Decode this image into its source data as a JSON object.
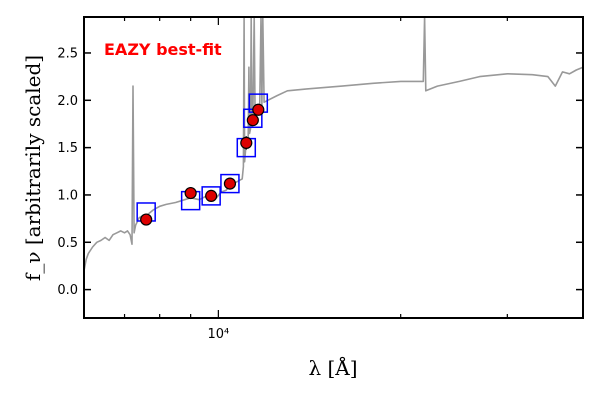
{
  "chart_data": {
    "type": "scatter",
    "annotation": "EAZY best-fit",
    "xlabel": "λ [Å]",
    "ylabel": "f_ν [arbitrarily scaled]",
    "xscale": "log",
    "xlim": [
      6000,
      40000
    ],
    "ylim": [
      -0.3,
      2.88
    ],
    "x_major_tick_labels": [
      {
        "value": 10000,
        "label": "10⁴"
      }
    ],
    "y_ticks": [
      0.0,
      0.5,
      1.0,
      1.5,
      2.0,
      2.5
    ],
    "y_tick_labels": [
      "0.0",
      "0.5",
      "1.0",
      "1.5",
      "2.0",
      "2.5"
    ],
    "grid": false,
    "colors": {
      "template": "#999999",
      "model_box": "#0000ff",
      "observed_fill": "#dd0000",
      "annotation": "#ff0000"
    },
    "series": [
      {
        "kind": "observed_photometry",
        "points": [
          {
            "x": 7600,
            "y": 0.74
          },
          {
            "x": 9000,
            "y": 1.02
          },
          {
            "x": 9730,
            "y": 0.99
          },
          {
            "x": 10450,
            "y": 1.12
          },
          {
            "x": 11120,
            "y": 1.55,
            "yerr": 0.07
          },
          {
            "x": 11400,
            "y": 1.79
          },
          {
            "x": 11640,
            "y": 1.9
          }
        ]
      },
      {
        "kind": "model_photometry",
        "points": [
          {
            "x": 7600,
            "y": 0.82
          },
          {
            "x": 9000,
            "y": 0.94
          },
          {
            "x": 9730,
            "y": 0.99
          },
          {
            "x": 10450,
            "y": 1.12
          },
          {
            "x": 11120,
            "y": 1.5
          },
          {
            "x": 11400,
            "y": 1.81
          },
          {
            "x": 11640,
            "y": 1.97
          }
        ]
      },
      {
        "kind": "best_fit_template",
        "points": [
          {
            "x": 6000,
            "y": 0.2
          },
          {
            "x": 6050,
            "y": 0.32
          },
          {
            "x": 6100,
            "y": 0.38
          },
          {
            "x": 6200,
            "y": 0.45
          },
          {
            "x": 6300,
            "y": 0.5
          },
          {
            "x": 6400,
            "y": 0.52
          },
          {
            "x": 6500,
            "y": 0.55
          },
          {
            "x": 6600,
            "y": 0.52
          },
          {
            "x": 6700,
            "y": 0.58
          },
          {
            "x": 6800,
            "y": 0.6
          },
          {
            "x": 6900,
            "y": 0.62
          },
          {
            "x": 7000,
            "y": 0.6
          },
          {
            "x": 7080,
            "y": 0.62
          },
          {
            "x": 7150,
            "y": 0.58
          },
          {
            "x": 7200,
            "y": 0.48
          },
          {
            "x": 7230,
            "y": 2.15
          },
          {
            "x": 7260,
            "y": 0.6
          },
          {
            "x": 7300,
            "y": 0.68
          },
          {
            "x": 7400,
            "y": 0.76
          },
          {
            "x": 7500,
            "y": 0.78
          },
          {
            "x": 7600,
            "y": 0.78
          },
          {
            "x": 7800,
            "y": 0.84
          },
          {
            "x": 8000,
            "y": 0.88
          },
          {
            "x": 8200,
            "y": 0.9
          },
          {
            "x": 8500,
            "y": 0.92
          },
          {
            "x": 8800,
            "y": 0.95
          },
          {
            "x": 9000,
            "y": 0.97
          },
          {
            "x": 9300,
            "y": 0.95
          },
          {
            "x": 9500,
            "y": 0.98
          },
          {
            "x": 9730,
            "y": 0.99
          },
          {
            "x": 9900,
            "y": 0.96
          },
          {
            "x": 10100,
            "y": 1.03
          },
          {
            "x": 10300,
            "y": 1.05
          },
          {
            "x": 10450,
            "y": 1.1
          },
          {
            "x": 10600,
            "y": 1.12
          },
          {
            "x": 10800,
            "y": 1.15
          },
          {
            "x": 10950,
            "y": 1.17
          },
          {
            "x": 11000,
            "y": 1.3
          },
          {
            "x": 11030,
            "y": 2.88
          },
          {
            "x": 11050,
            "y": 1.35
          },
          {
            "x": 11100,
            "y": 1.5
          },
          {
            "x": 11150,
            "y": 1.56
          },
          {
            "x": 11200,
            "y": 1.62
          },
          {
            "x": 11230,
            "y": 2.35
          },
          {
            "x": 11260,
            "y": 1.65
          },
          {
            "x": 11300,
            "y": 1.7
          },
          {
            "x": 11330,
            "y": 2.88
          },
          {
            "x": 11360,
            "y": 1.72
          },
          {
            "x": 11400,
            "y": 1.78
          },
          {
            "x": 11460,
            "y": 2.88
          },
          {
            "x": 11500,
            "y": 1.82
          },
          {
            "x": 11600,
            "y": 1.88
          },
          {
            "x": 11700,
            "y": 1.93
          },
          {
            "x": 11760,
            "y": 2.88
          },
          {
            "x": 11800,
            "y": 1.95
          },
          {
            "x": 11840,
            "y": 2.88
          },
          {
            "x": 11900,
            "y": 1.98
          },
          {
            "x": 12500,
            "y": 2.05
          },
          {
            "x": 13000,
            "y": 2.1
          },
          {
            "x": 14000,
            "y": 2.12
          },
          {
            "x": 16000,
            "y": 2.15
          },
          {
            "x": 18000,
            "y": 2.18
          },
          {
            "x": 20000,
            "y": 2.2
          },
          {
            "x": 21800,
            "y": 2.2
          },
          {
            "x": 21900,
            "y": 2.88
          },
          {
            "x": 22000,
            "y": 2.1
          },
          {
            "x": 23000,
            "y": 2.15
          },
          {
            "x": 25000,
            "y": 2.2
          },
          {
            "x": 27000,
            "y": 2.25
          },
          {
            "x": 30000,
            "y": 2.28
          },
          {
            "x": 33000,
            "y": 2.27
          },
          {
            "x": 35000,
            "y": 2.25
          },
          {
            "x": 36000,
            "y": 2.15
          },
          {
            "x": 37000,
            "y": 2.3
          },
          {
            "x": 38000,
            "y": 2.28
          },
          {
            "x": 39000,
            "y": 2.32
          },
          {
            "x": 40000,
            "y": 2.35
          }
        ]
      }
    ]
  }
}
